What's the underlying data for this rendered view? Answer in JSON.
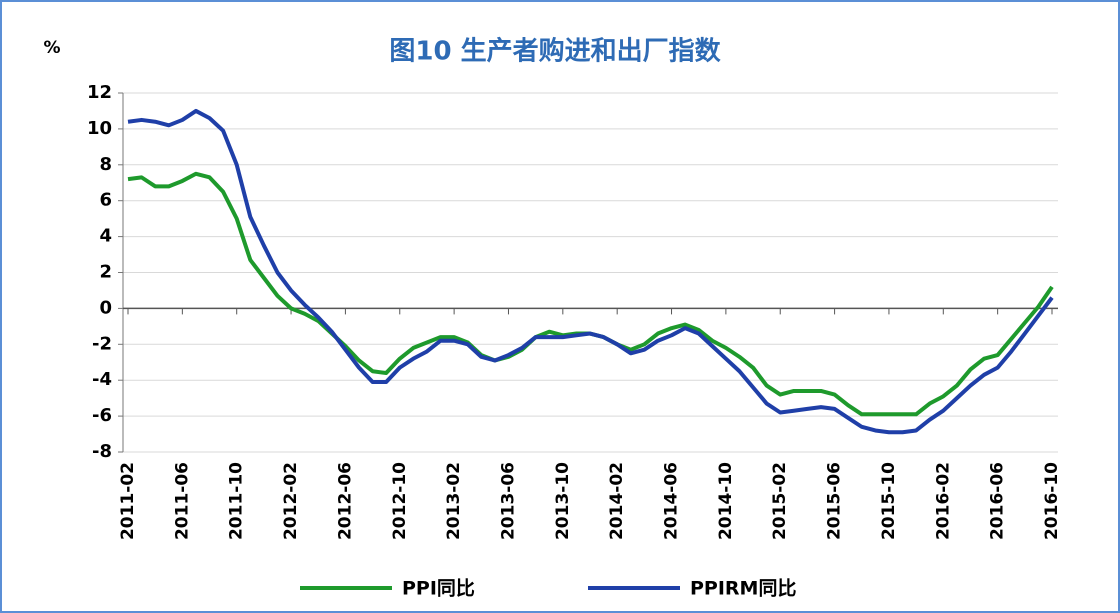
{
  "chart_data": {
    "type": "line",
    "title": "图10 生产者购进和出厂指数",
    "y_unit": "%",
    "categories": [
      "2011-02",
      null,
      null,
      null,
      "2011-06",
      null,
      null,
      null,
      "2011-10",
      null,
      null,
      null,
      "2012-02",
      null,
      null,
      null,
      "2012-06",
      null,
      null,
      null,
      "2012-10",
      null,
      null,
      null,
      "2013-02",
      null,
      null,
      null,
      "2013-06",
      null,
      null,
      null,
      "2013-10",
      null,
      null,
      null,
      "2014-02",
      null,
      null,
      null,
      "2014-06",
      null,
      null,
      null,
      "2014-10",
      null,
      null,
      null,
      "2015-02",
      null,
      null,
      null,
      "2015-06",
      null,
      null,
      null,
      "2015-10",
      null,
      null,
      null,
      "2016-02",
      null,
      null,
      null,
      "2016-06",
      null,
      null,
      null,
      "2016-10"
    ],
    "series": [
      {
        "name": "PPI同比",
        "color": "#1e9a2c",
        "values": [
          7.2,
          7.3,
          6.8,
          6.8,
          7.1,
          7.5,
          7.3,
          6.5,
          5.0,
          2.7,
          1.7,
          0.7,
          0.0,
          -0.3,
          -0.7,
          -1.4,
          -2.1,
          -2.9,
          -3.5,
          -3.6,
          -2.8,
          -2.2,
          -1.9,
          -1.6,
          -1.6,
          -1.9,
          -2.6,
          -2.9,
          -2.7,
          -2.3,
          -1.6,
          -1.3,
          -1.5,
          -1.4,
          -1.4,
          -1.6,
          -2.0,
          -2.3,
          -2.0,
          -1.4,
          -1.1,
          -0.9,
          -1.2,
          -1.8,
          -2.2,
          -2.7,
          -3.3,
          -4.3,
          -4.8,
          -4.6,
          -4.6,
          -4.6,
          -4.8,
          -5.4,
          -5.9,
          -5.9,
          -5.9,
          -5.9,
          -5.9,
          -5.3,
          -4.9,
          -4.3,
          -3.4,
          -2.8,
          -2.6,
          -1.7,
          -0.8,
          0.1,
          1.2
        ]
      },
      {
        "name": "PPIRM同比",
        "color": "#1f3fa8",
        "values": [
          10.4,
          10.5,
          10.4,
          10.2,
          10.5,
          11.0,
          10.6,
          9.9,
          8.0,
          5.1,
          3.5,
          2.0,
          1.0,
          0.2,
          -0.5,
          -1.3,
          -2.3,
          -3.3,
          -4.1,
          -4.1,
          -3.3,
          -2.8,
          -2.4,
          -1.8,
          -1.8,
          -2.0,
          -2.7,
          -2.9,
          -2.6,
          -2.2,
          -1.6,
          -1.6,
          -1.6,
          -1.5,
          -1.4,
          -1.6,
          -2.0,
          -2.5,
          -2.3,
          -1.8,
          -1.5,
          -1.1,
          -1.4,
          -2.1,
          -2.8,
          -3.5,
          -4.4,
          -5.3,
          -5.8,
          -5.7,
          -5.6,
          -5.5,
          -5.6,
          -6.1,
          -6.6,
          -6.8,
          -6.9,
          -6.9,
          -6.8,
          -6.2,
          -5.7,
          -5.0,
          -4.3,
          -3.7,
          -3.3,
          -2.4,
          -1.4,
          -0.4,
          0.6
        ]
      }
    ],
    "ylim": [
      -8,
      12
    ],
    "yticks": [
      12,
      10,
      8,
      6,
      4,
      2,
      0,
      -2,
      -4,
      -6,
      -8
    ],
    "grid": true
  }
}
